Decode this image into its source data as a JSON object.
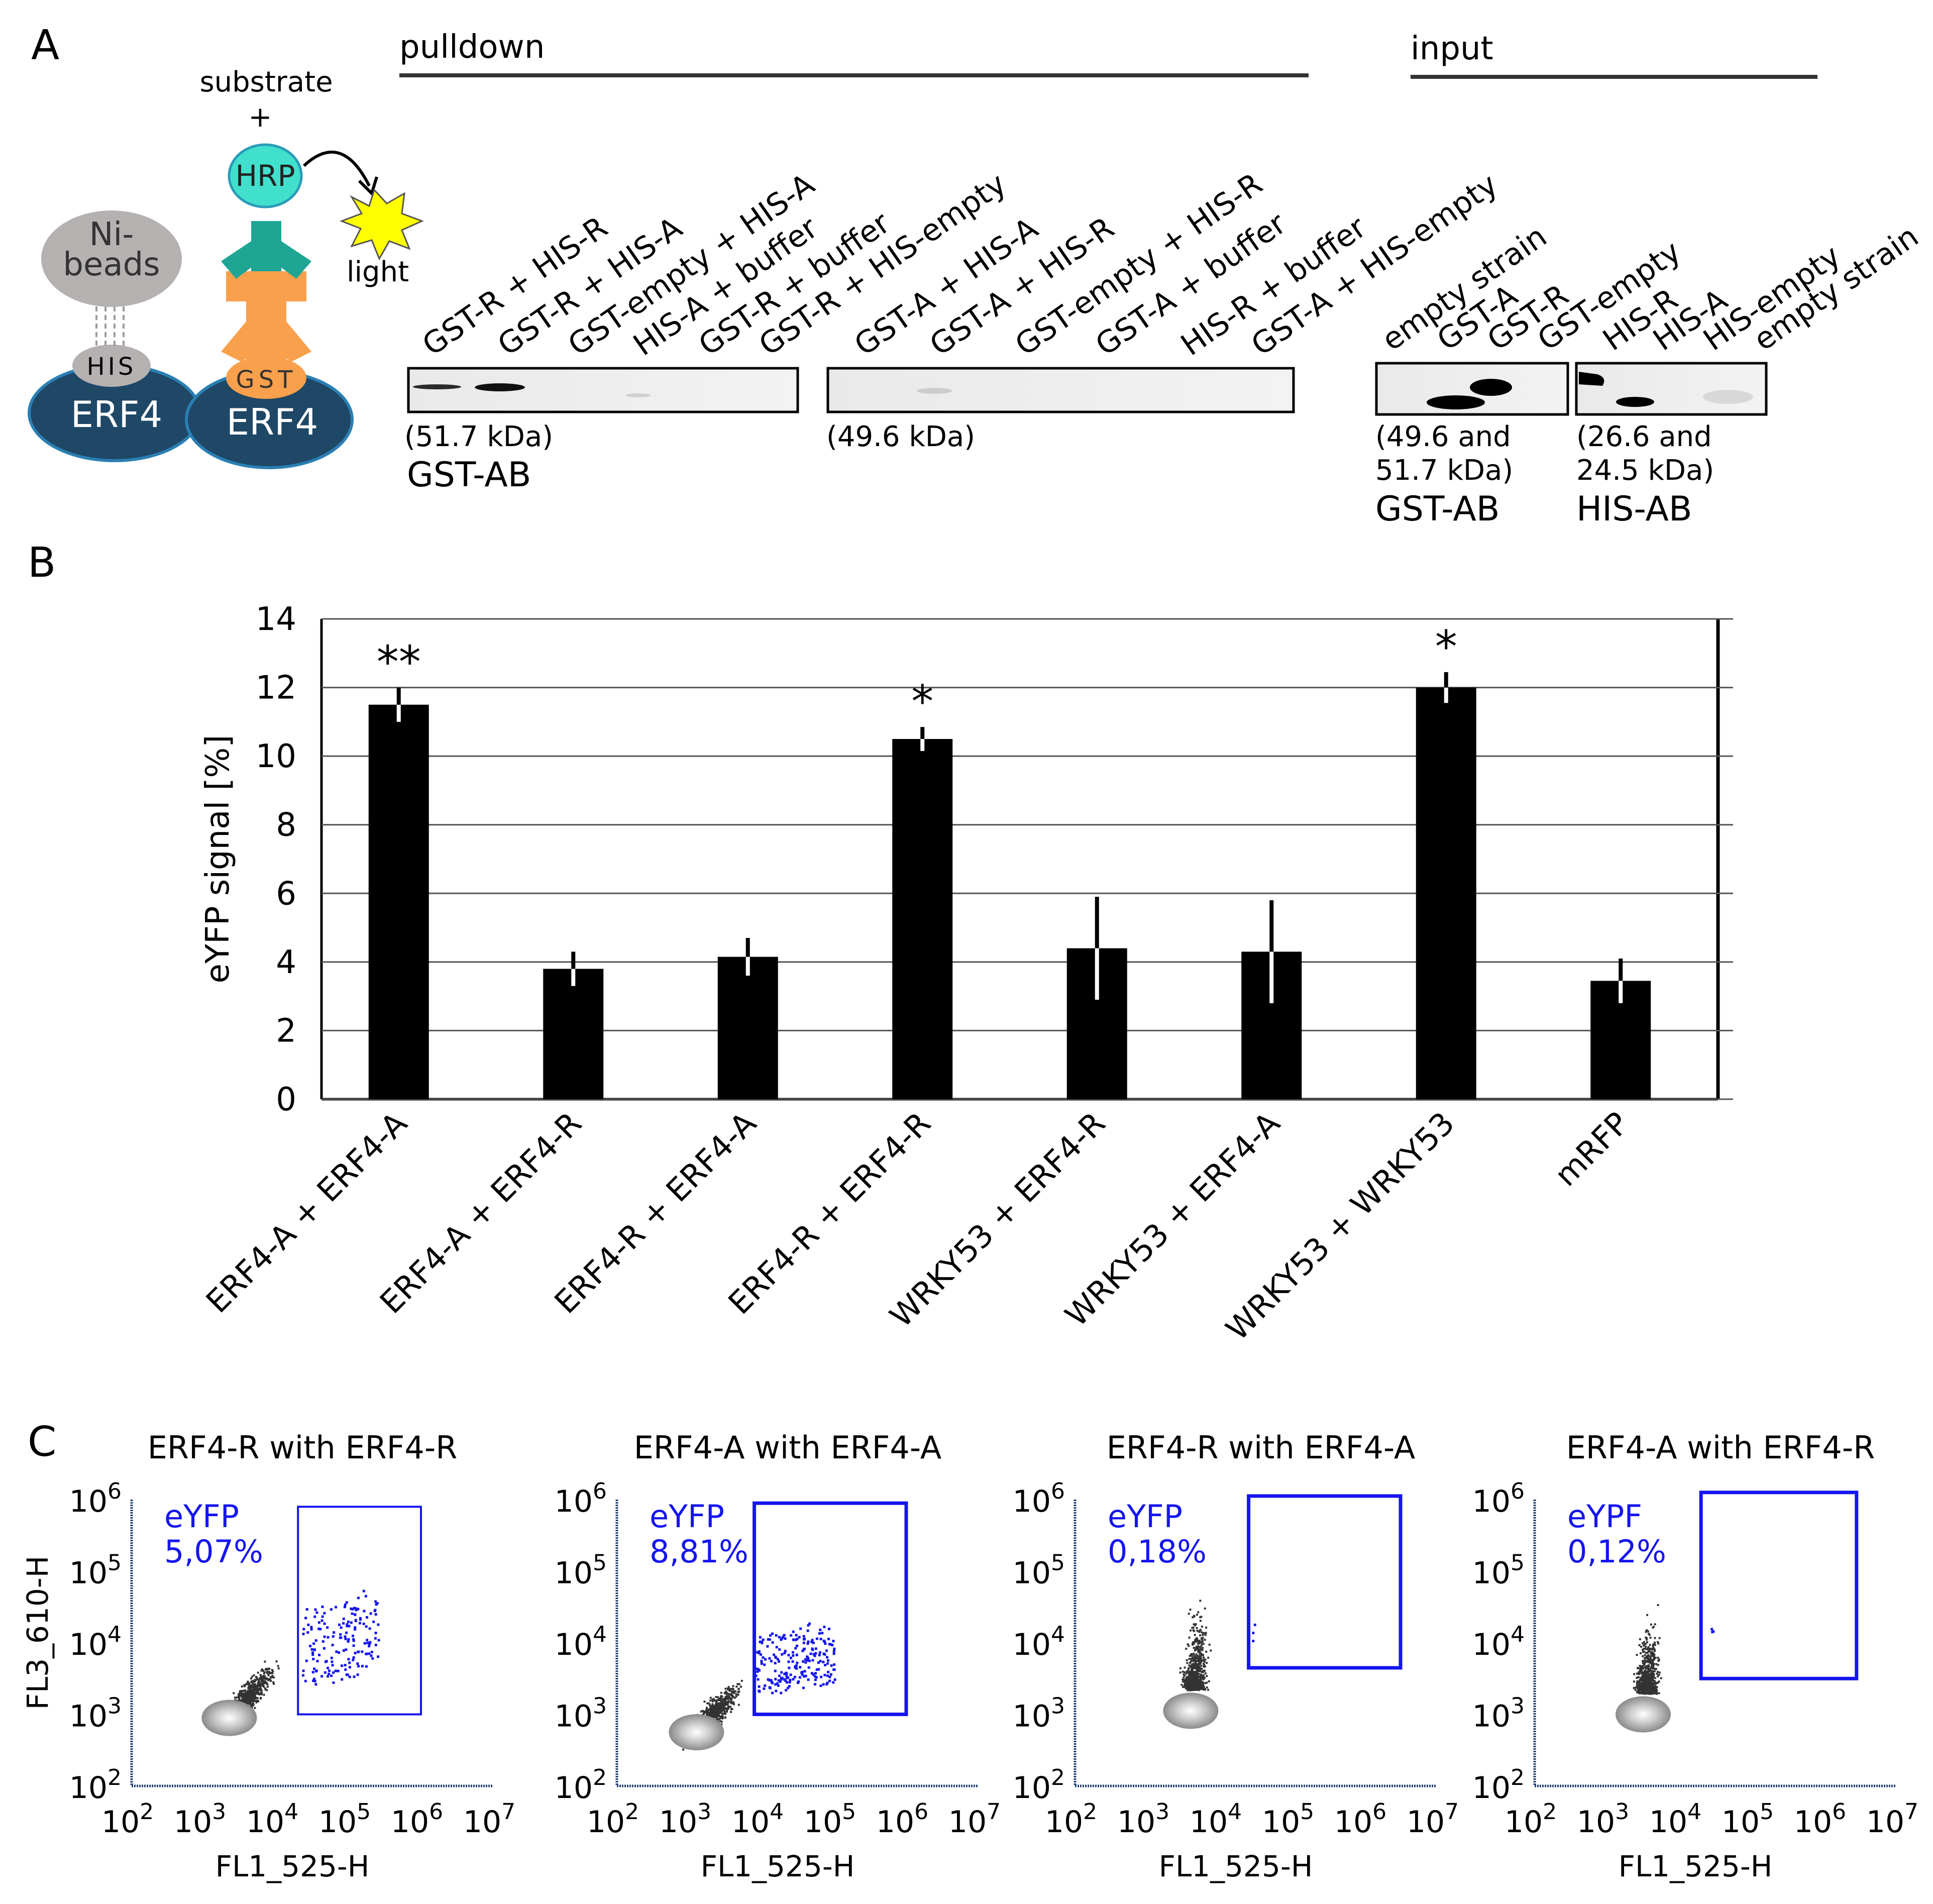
{
  "colors": {
    "black": "#000000",
    "navy": "#1f4766",
    "teal": "#1fa594",
    "hrpTeal": "#40e0cc",
    "orange": "#f9a04c",
    "grey": "#b5b1b1",
    "blue": "#1515ee",
    "yellow": "#ffff00"
  },
  "panels": {
    "a": "A",
    "b": "B",
    "c": "C"
  },
  "panelA": {
    "diagram": {
      "substrate": "substrate",
      "plus": "+",
      "hrp": "HRP",
      "light": "light",
      "ni1": "Ni-",
      "ni2": "beads",
      "his": "HIS",
      "gst": "GST",
      "erf4": "ERF4",
      "erf4b": "ERF4"
    },
    "pulldown": "pulldown",
    "input": "input",
    "blot1": {
      "lanes": [
        "GST-R + HIS-R",
        "GST-R + HIS-A",
        "GST-empty + HIS-A",
        "HIS-A + buffer",
        "GST-R + buffer",
        "GST-R + HIS-empty"
      ],
      "size": "(51.7 kDa)",
      "ab": "GST-AB"
    },
    "blot2": {
      "lanes": [
        "GST-A + HIS-A",
        "GST-A + HIS-R",
        "GST-empty + HIS-R",
        "GST-A + buffer",
        "HIS-R + buffer",
        "GST-A + HIS-empty"
      ],
      "size": "(49.6 kDa)"
    },
    "blot3": {
      "lanes": [
        "empty strain",
        "GST-A",
        "GST-R",
        "GST-empty"
      ],
      "size1": "(49.6 and",
      "size2": "51.7 kDa)",
      "ab": "GST-AB"
    },
    "blot4": {
      "lanes": [
        "HIS-R",
        "HIS-A",
        "HIS-empty",
        "empty strain"
      ],
      "size1": "(26.6 and",
      "size2": "24.5 kDa)",
      "ab": "HIS-AB"
    }
  },
  "chart_data": [
    {
      "type": "bar",
      "title": "",
      "ylabel": "eYFP signal [%]",
      "xlabel": "",
      "ylim": [
        0,
        14
      ],
      "yticks": [
        "0",
        "2",
        "4",
        "6",
        "8",
        "10",
        "12",
        "14"
      ],
      "categories": [
        "ERF4-A + ERF4-A",
        "ERF4-A + ERF4-R",
        "ERF4-R + ERF4-A",
        "ERF4-R + ERF4-R",
        "WRKY53 + ERF4-R",
        "WRKY53 + ERF4-A",
        "WRKY53 + WRKY53",
        "mRFP"
      ],
      "values": [
        11.5,
        3.8,
        4.15,
        10.5,
        4.4,
        4.3,
        12.0,
        3.45
      ],
      "errors": [
        0.5,
        0.5,
        0.55,
        0.35,
        1.5,
        1.5,
        0.45,
        0.65
      ],
      "annotations": [
        "**",
        "",
        "",
        "*",
        "",
        "",
        "*",
        ""
      ]
    },
    {
      "type": "scatter",
      "subplots": [
        {
          "title": "ERF4-R with ERF4-R",
          "gate_label": "eYFP",
          "gate_value": "5,07%"
        },
        {
          "title": "ERF4-A with ERF4-A",
          "gate_label": "eYFP",
          "gate_value": "8,81%"
        },
        {
          "title": "ERF4-R with ERF4-A",
          "gate_label": "eYFP",
          "gate_value": "0,18%"
        },
        {
          "title": "ERF4-A with ERF4-R",
          "gate_label": "eYPF",
          "gate_value": "0,12%"
        }
      ],
      "xlabel": "FL1_525-H",
      "ylabel": "FL3_610-H",
      "xlim": [
        100,
        10000000
      ],
      "ylim": [
        100,
        1000000
      ],
      "xticks": [
        "2",
        "3",
        "4",
        "5",
        "6",
        "7"
      ],
      "yticks": [
        "2",
        "3",
        "4",
        "5",
        "6"
      ],
      "tick_base": "10"
    }
  ]
}
